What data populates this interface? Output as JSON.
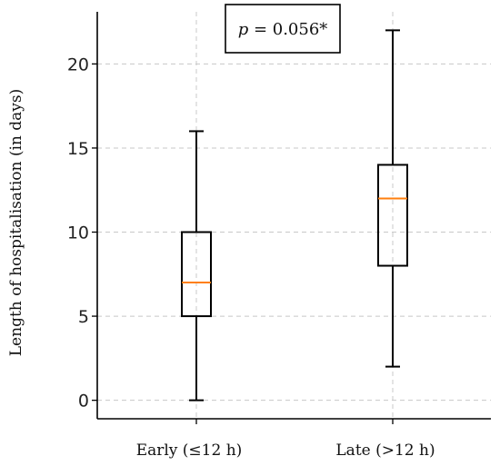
{
  "chart_data": {
    "type": "box",
    "categories": [
      "Early (≤12 h)",
      "Late (>12 h)"
    ],
    "boxes": [
      {
        "category": "Early (≤12 h)",
        "min": 0,
        "q1": 5,
        "median": 7,
        "q3": 10,
        "max": 16
      },
      {
        "category": "Late (>12 h)",
        "min": 2,
        "q1": 8,
        "median": 12,
        "q3": 14,
        "max": 22
      }
    ],
    "ylabel": "Length of hospitalisation (in days)",
    "xlabel": "",
    "yticks": [
      0,
      5,
      10,
      15,
      20
    ],
    "ylim": [
      -1.1,
      23.1
    ],
    "grid": true,
    "annotation": {
      "p_symbol": "p",
      "text": " = 0.056*"
    },
    "colors": {
      "median": "#ff7f0e",
      "box": "#000000",
      "grid": "#c8c8c8"
    }
  }
}
